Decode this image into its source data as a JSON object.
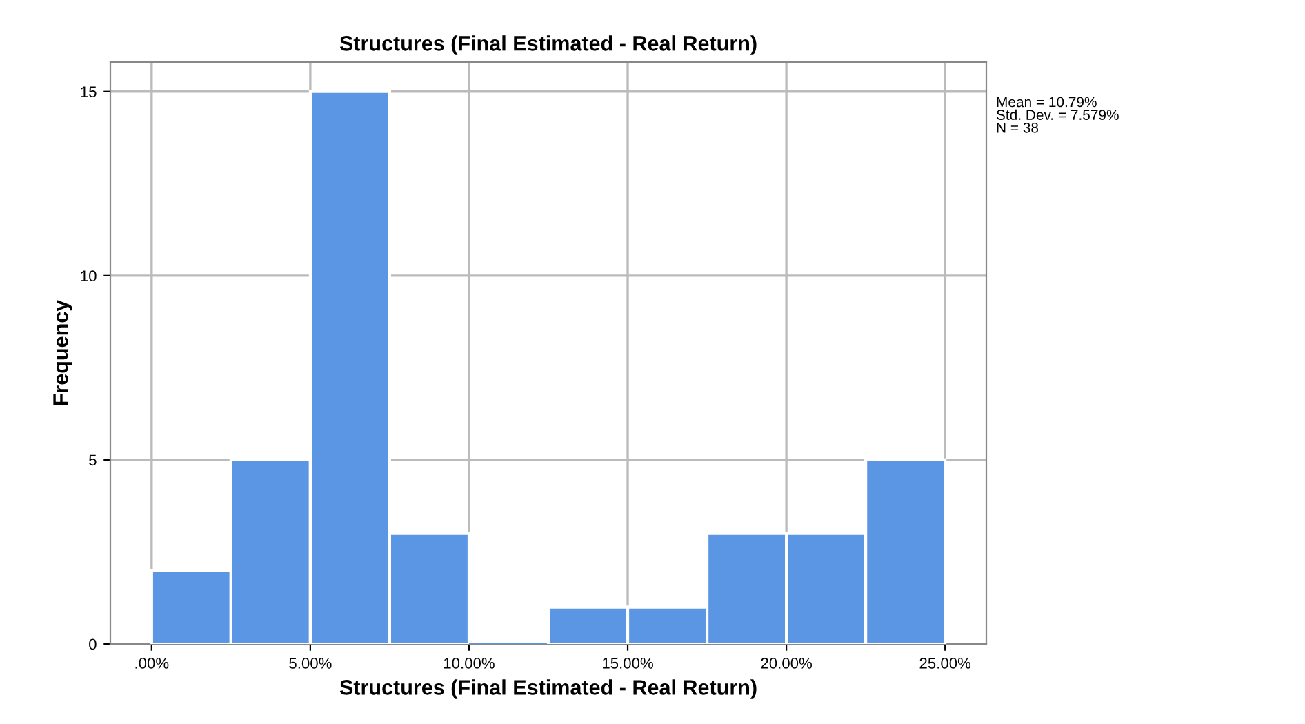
{
  "chart_data": {
    "type": "histogram",
    "title": "Structures (Final Estimated - Real Return)",
    "xlabel": "Structures (Final Estimated - Real Return)",
    "ylabel": "Frequency",
    "bins": [
      0,
      2.5,
      5,
      7.5,
      10,
      12.5,
      15,
      17.5,
      20,
      22.5,
      25
    ],
    "values": [
      2,
      5,
      15,
      3,
      0,
      1,
      1,
      3,
      3,
      5
    ],
    "color": "#5b96e4",
    "xlim": [
      -1.3,
      26.3
    ],
    "ylim": [
      0,
      15.8
    ],
    "xticks": [
      {
        "value": 0,
        "label": ".00%"
      },
      {
        "value": 5,
        "label": "5.00%"
      },
      {
        "value": 10,
        "label": "10.00%"
      },
      {
        "value": 15,
        "label": "15.00%"
      },
      {
        "value": 20,
        "label": "20.00%"
      },
      {
        "value": 25,
        "label": "25.00%"
      }
    ],
    "yticks": [
      0,
      5,
      10,
      15
    ],
    "grid": true,
    "annotations": [
      "Mean = 10.79%\nStd. Dev. = 7.579%\nN = 38"
    ]
  }
}
